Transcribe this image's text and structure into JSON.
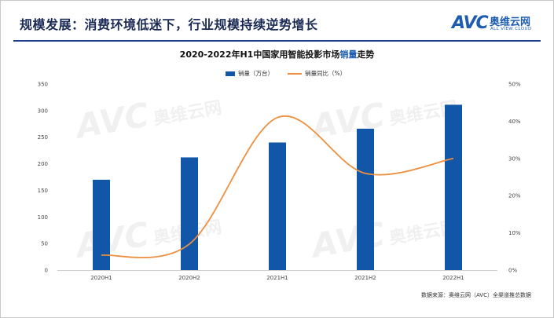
{
  "header": {
    "title": "规模发展：消费环境低迷下，行业规模持续逆势增长"
  },
  "logo": {
    "word": "AVC",
    "cn": "奥维云网",
    "en": "ALL VIEW CLOUD"
  },
  "watermark": {
    "word": "AVC",
    "cn": "奥维云网",
    "en": "ALL VIEW CLOUD"
  },
  "chart_data": {
    "type": "bar",
    "title_prefix": "2020-2022年H1中国家用智能投影市场",
    "title_highlight": "销量",
    "title_suffix": "走势",
    "categories": [
      "2020H1",
      "2020H2",
      "2021H1",
      "2021H2",
      "2022H1"
    ],
    "series": [
      {
        "name": "销量（万台）",
        "type": "bar",
        "axis": "left",
        "values": [
          170,
          212,
          240,
          266,
          311
        ],
        "color": "#1256a8"
      },
      {
        "name": "销量同比（%）",
        "type": "line",
        "axis": "right",
        "values": [
          4,
          7,
          41,
          26,
          30
        ],
        "color": "#ec8f3f"
      }
    ],
    "left_axis": {
      "min": 0,
      "max": 350,
      "ticks": [
        "0",
        "50",
        "100",
        "150",
        "200",
        "250",
        "300",
        "350"
      ]
    },
    "right_axis": {
      "min": 0,
      "max": 50,
      "ticks": [
        "0%",
        "10%",
        "20%",
        "30%",
        "40%",
        "50%"
      ]
    },
    "grid": false,
    "legend_position": "top-center"
  },
  "source": {
    "text": "数据来源：奥维云网（AVC）全渠道推总数据"
  }
}
